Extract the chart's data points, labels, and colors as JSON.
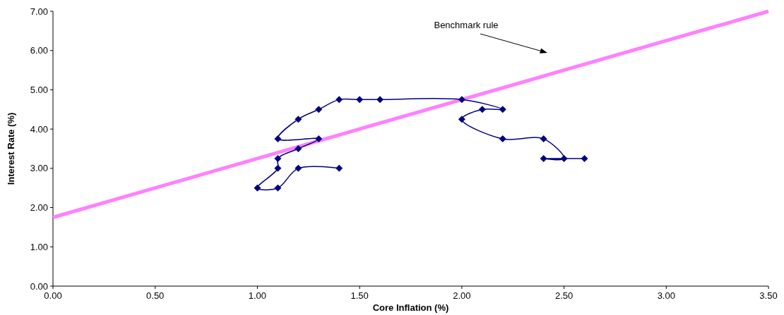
{
  "chart_data": {
    "type": "line",
    "xlabel": "Core Inflation (%)",
    "ylabel": "Interest Rate (%)",
    "xlim": [
      0,
      3.5
    ],
    "ylim": [
      0,
      7
    ],
    "xticks": [
      {
        "value": 0,
        "label": "0.00"
      },
      {
        "value": 0.5,
        "label": "0.50"
      },
      {
        "value": 1,
        "label": "1.00"
      },
      {
        "value": 1.5,
        "label": "1.50"
      },
      {
        "value": 2,
        "label": "2.00"
      },
      {
        "value": 2.5,
        "label": "2.50"
      },
      {
        "value": 3,
        "label": "3.00"
      },
      {
        "value": 3.5,
        "label": "3.50"
      }
    ],
    "yticks": [
      {
        "value": 0,
        "label": "0.00"
      },
      {
        "value": 1,
        "label": "1.00"
      },
      {
        "value": 2,
        "label": "2.00"
      },
      {
        "value": 3,
        "label": "3.00"
      },
      {
        "value": 4,
        "label": "4.00"
      },
      {
        "value": 5,
        "label": "5.00"
      },
      {
        "value": 6,
        "label": "6.00"
      },
      {
        "value": 7,
        "label": "7.00"
      }
    ],
    "grid": false,
    "series": [
      {
        "color": "#ff80ff",
        "marker": "none",
        "x": [
          0,
          3.5
        ],
        "values": [
          1.75,
          7.0
        ]
      },
      {
        "color": "#000080",
        "marker": "diamond",
        "x": [
          1.4,
          1.2,
          1.1,
          1.0,
          1.1,
          1.1,
          1.2,
          1.3,
          1.1,
          1.2,
          1.3,
          1.4,
          1.5,
          1.6,
          2.0,
          2.2,
          2.1,
          2.0,
          2.2,
          2.4,
          2.5,
          2.4,
          2.6
        ],
        "values": [
          3.0,
          3.0,
          2.5,
          2.5,
          3.0,
          3.25,
          3.5,
          3.75,
          3.75,
          4.25,
          4.5,
          4.75,
          4.75,
          4.75,
          4.75,
          4.5,
          4.5,
          4.25,
          3.75,
          3.75,
          3.25,
          3.25,
          3.25
        ]
      }
    ],
    "annotations": [
      "Benchmark rule"
    ]
  }
}
